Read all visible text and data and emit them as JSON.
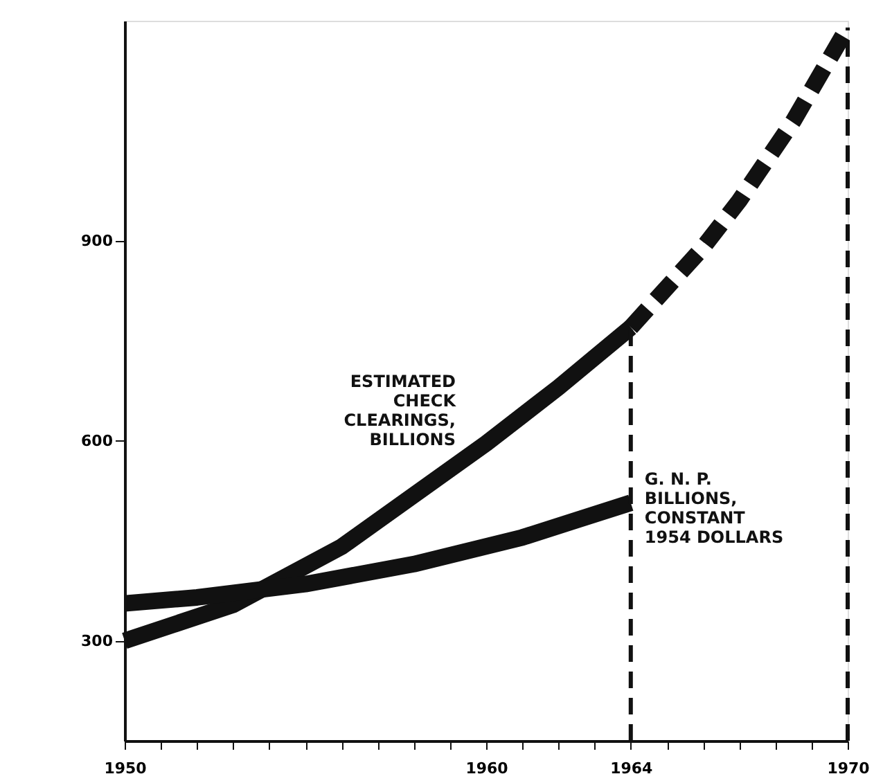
{
  "chart_data": {
    "type": "line",
    "xlim": [
      1950,
      1970
    ],
    "ylim": [
      150,
      1230
    ],
    "xticks": [
      1950,
      {
        "value": 1951,
        "label": null
      },
      {
        "value": 1952,
        "label": null
      },
      {
        "value": 1953,
        "label": null
      },
      {
        "value": 1954,
        "label": null
      },
      {
        "value": 1955,
        "label": null
      },
      {
        "value": 1956,
        "label": null
      },
      {
        "value": 1957,
        "label": null
      },
      {
        "value": 1958,
        "label": null
      },
      {
        "value": 1959,
        "label": null
      },
      1960,
      {
        "value": 1961,
        "label": null
      },
      {
        "value": 1962,
        "label": null
      },
      {
        "value": 1963,
        "label": null
      },
      1964,
      {
        "value": 1965,
        "label": null
      },
      {
        "value": 1966,
        "label": null
      },
      {
        "value": 1967,
        "label": null
      },
      {
        "value": 1968,
        "label": null
      },
      {
        "value": 1969,
        "label": null
      },
      1970
    ],
    "yticks": [
      300,
      600,
      900
    ],
    "grid": false,
    "marker": "none",
    "series": [
      {
        "name": "ESTIMATED\nCHECK\nCLEARINGS,\nBILLIONS",
        "color": "#111111",
        "line_style": "solid",
        "x": [
          1950,
          1953,
          1956,
          1960,
          1962,
          1964
        ],
        "values": [
          300,
          354,
          441,
          596,
          680,
          770
        ]
      },
      {
        "color": "#111111",
        "line_style": "dashed",
        "x": [
          1964,
          1966,
          1967,
          1968.5,
          1970
        ],
        "values": [
          770,
          890,
          960,
          1080,
          1220
        ]
      },
      {
        "name": "G. N. P.\nBILLIONS,\nCONSTANT\n1954 DOLLARS",
        "color": "#111111",
        "line_style": "solid",
        "x": [
          1950,
          1952,
          1955,
          1958,
          1961,
          1964
        ],
        "values": [
          356,
          365,
          385,
          415,
          455,
          507
        ]
      }
    ],
    "ref_lines": [
      {
        "axis": "x",
        "value": 1964,
        "line_style": "dashed",
        "color": "#111111"
      },
      {
        "axis": "x",
        "value": 1970,
        "line_style": "dashed",
        "color": "#111111"
      }
    ]
  }
}
